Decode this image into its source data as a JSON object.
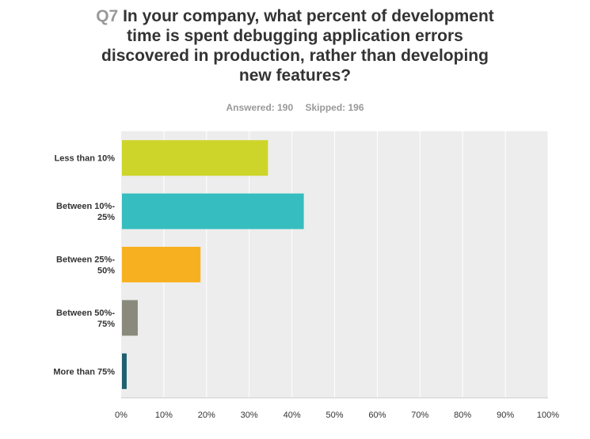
{
  "question": {
    "number": "Q7",
    "text": "In your company, what percent of development time is spent debugging application errors discovered in production, rather than developing new features?"
  },
  "stats": {
    "answered": "Answered: 190",
    "skipped": "Skipped: 196"
  },
  "chart_data": {
    "type": "bar",
    "orientation": "horizontal",
    "categories": [
      [
        "Less than 10%"
      ],
      [
        "Between 10%-",
        "25%"
      ],
      [
        "Between 25%-",
        "50%"
      ],
      [
        "Between 50%-",
        "75%"
      ],
      [
        "More than 75%"
      ]
    ],
    "values": [
      34.2,
      42.6,
      18.4,
      3.7,
      1.1
    ],
    "colors": [
      "#cdd52a",
      "#35bdbf",
      "#f7b120",
      "#898a7c",
      "#1f5f70"
    ],
    "xlim": [
      0,
      100
    ],
    "ticks": [
      "0%",
      "10%",
      "20%",
      "30%",
      "40%",
      "50%",
      "60%",
      "70%",
      "80%",
      "90%",
      "100%"
    ],
    "grid": true,
    "plot_background": "#ededed"
  }
}
